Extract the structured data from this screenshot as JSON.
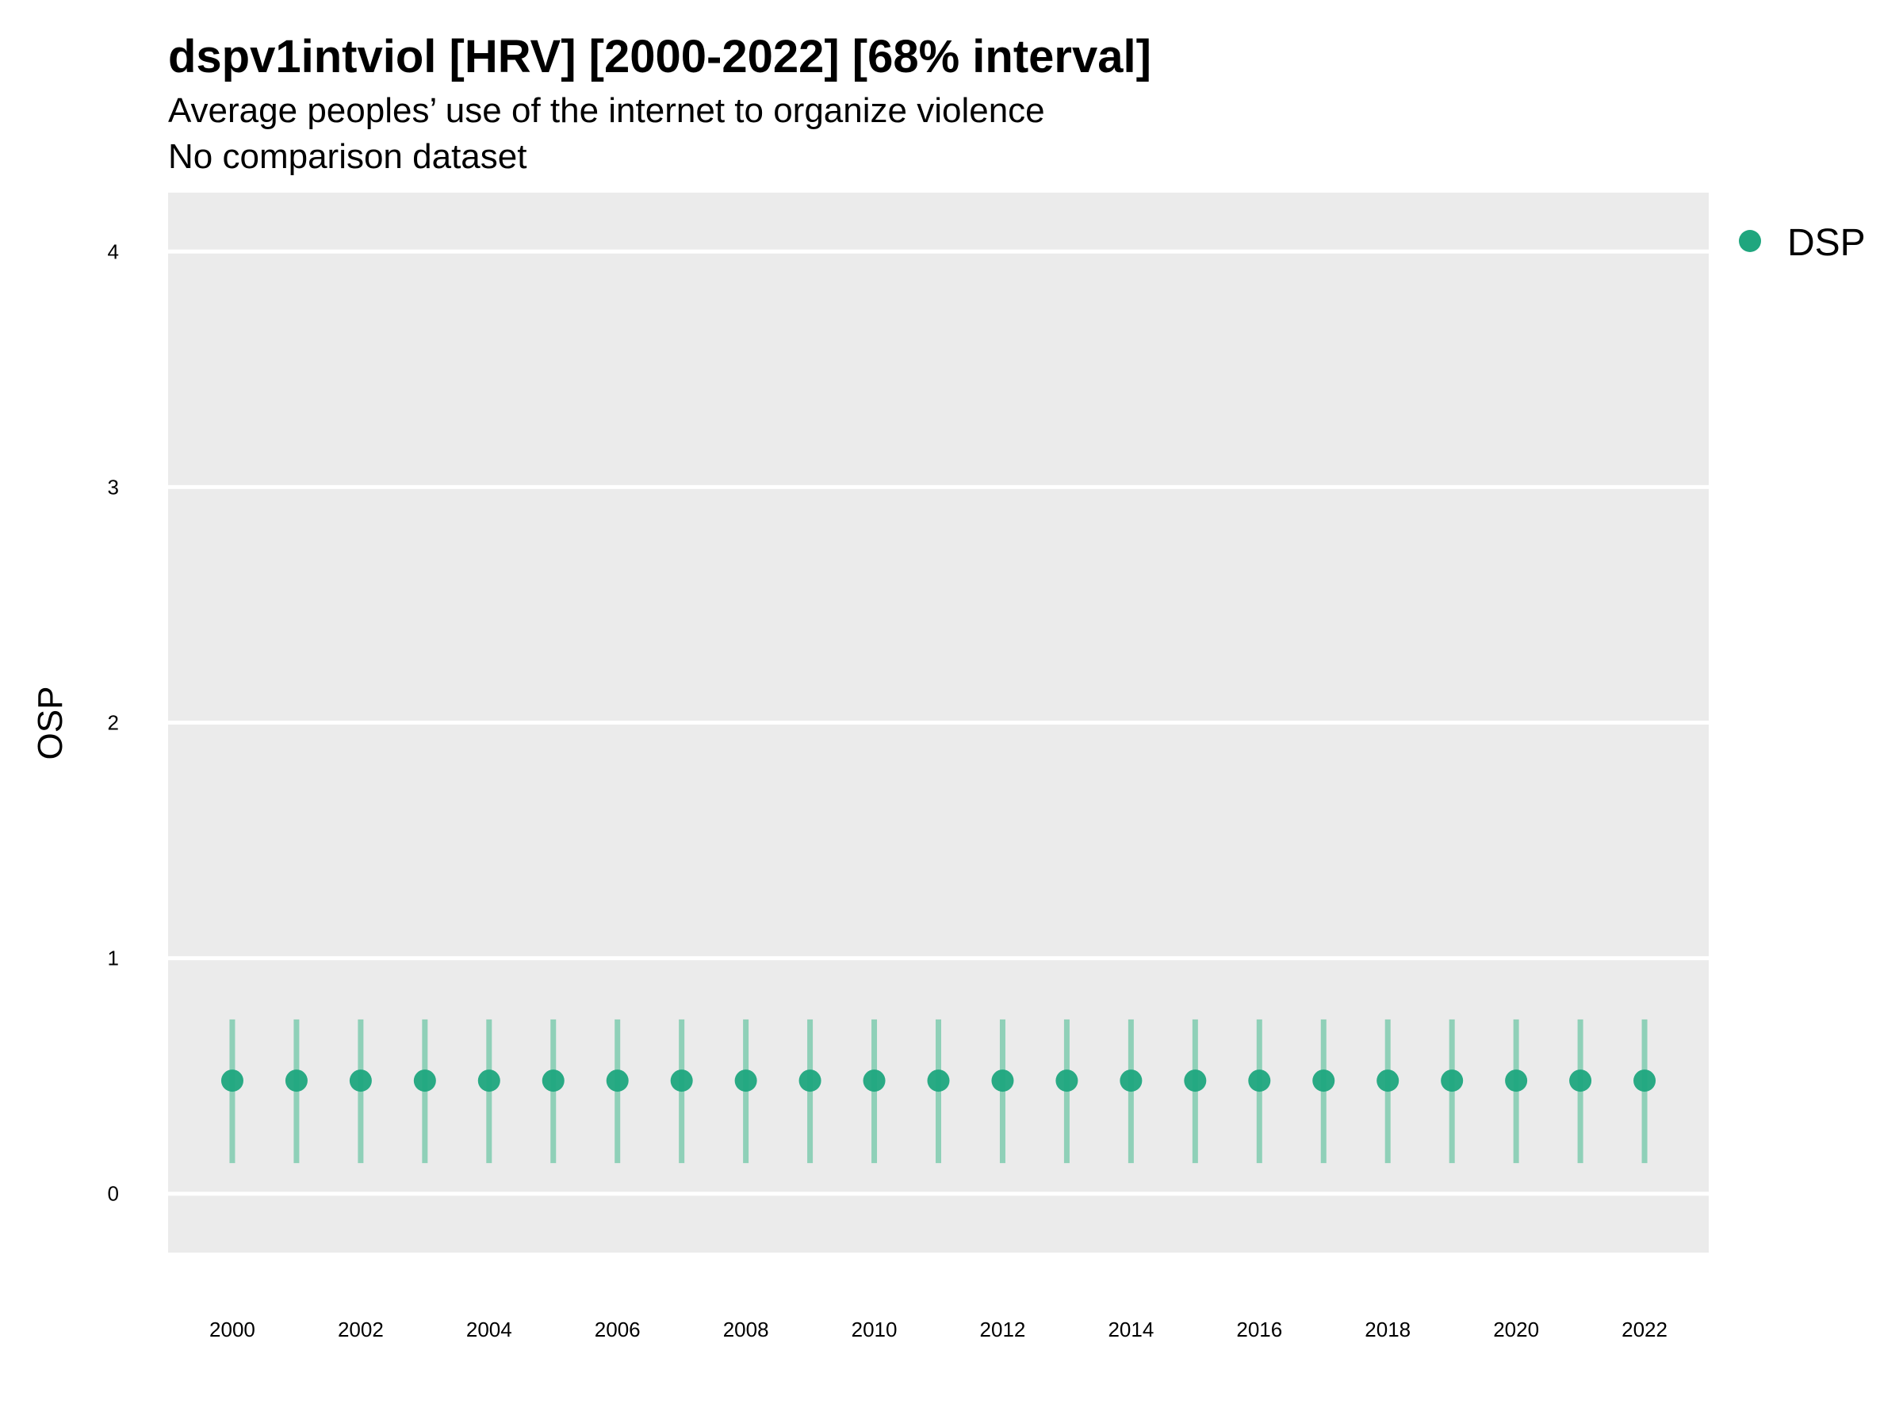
{
  "chart_data": {
    "type": "scatter",
    "title": "dspv1intviol [HRV] [2000-2022] [68% interval]",
    "subtitle": "Average peoples’ use of the internet to organize violence",
    "caption": "No comparison dataset",
    "ylabel": "OSP",
    "xlabel": "",
    "x": [
      2000,
      2001,
      2002,
      2003,
      2004,
      2005,
      2006,
      2007,
      2008,
      2009,
      2010,
      2011,
      2012,
      2013,
      2014,
      2015,
      2016,
      2017,
      2018,
      2019,
      2020,
      2021,
      2022
    ],
    "x_ticks": [
      "2000",
      "2002",
      "2004",
      "2006",
      "2008",
      "2010",
      "2012",
      "2014",
      "2016",
      "2018",
      "2020",
      "2022"
    ],
    "y_ticks": [
      "0",
      "1",
      "2",
      "3",
      "4"
    ],
    "xlim": [
      1999.0,
      2023.0
    ],
    "ylim": [
      -0.25,
      4.25
    ],
    "grid": true,
    "legend_position": "top-right",
    "series": [
      {
        "name": "DSP",
        "color": "#1fa67e",
        "values": [
          0.48,
          0.48,
          0.48,
          0.48,
          0.48,
          0.48,
          0.48,
          0.48,
          0.48,
          0.48,
          0.48,
          0.48,
          0.48,
          0.48,
          0.48,
          0.48,
          0.48,
          0.48,
          0.48,
          0.48,
          0.48,
          0.48,
          0.48
        ],
        "lower": [
          0.13,
          0.13,
          0.13,
          0.13,
          0.13,
          0.13,
          0.13,
          0.13,
          0.13,
          0.13,
          0.13,
          0.13,
          0.13,
          0.13,
          0.13,
          0.13,
          0.13,
          0.13,
          0.13,
          0.13,
          0.13,
          0.13,
          0.13
        ],
        "upper": [
          0.74,
          0.74,
          0.74,
          0.74,
          0.74,
          0.74,
          0.74,
          0.74,
          0.74,
          0.74,
          0.74,
          0.74,
          0.74,
          0.74,
          0.74,
          0.74,
          0.74,
          0.74,
          0.74,
          0.74,
          0.74,
          0.74,
          0.74
        ]
      }
    ]
  },
  "colors": {
    "panel": "#ebebeb",
    "grid": "#ffffff",
    "point": "#1fa67e",
    "interval": "#8fd0b8"
  }
}
